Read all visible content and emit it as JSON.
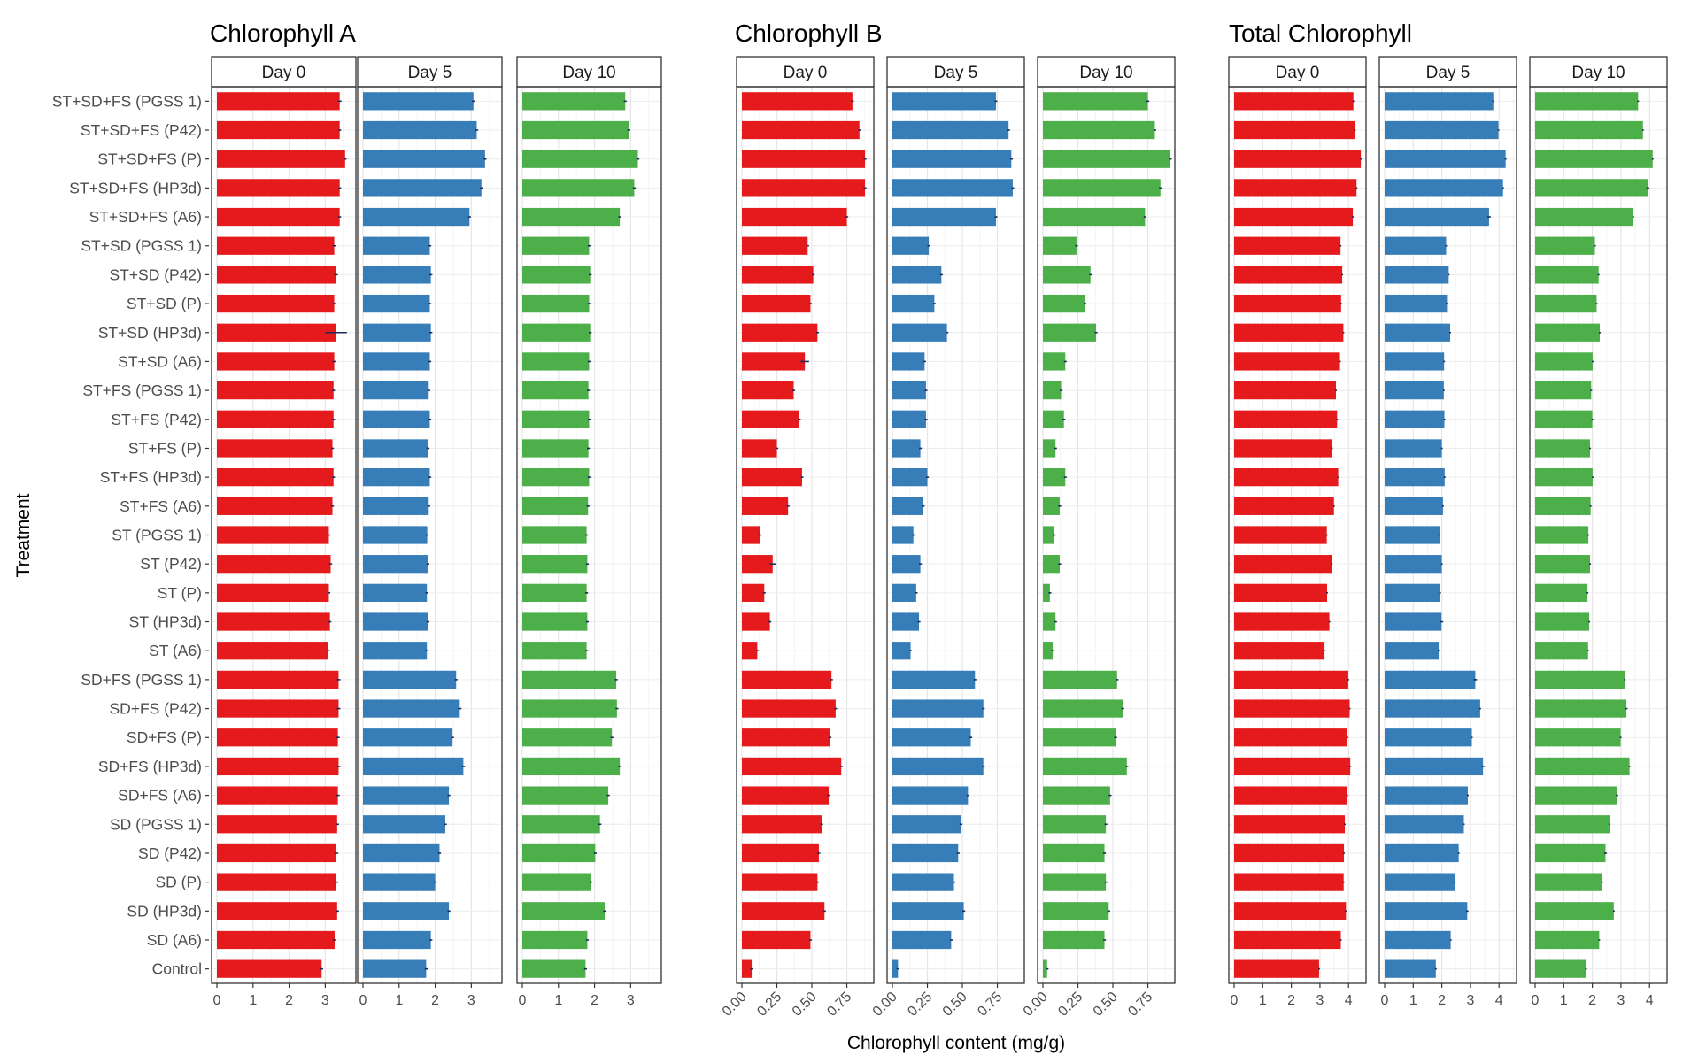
{
  "chart_data": {
    "type": "bar",
    "orientation": "horizontal",
    "xlabel": "Chlorophyll content (mg/g)",
    "ylabel": "Treatment",
    "grid": true,
    "legend": "none",
    "categories": [
      "ST+SD+FS (PGSS 1)",
      "ST+SD+FS (P42)",
      "ST+SD+FS (P)",
      "ST+SD+FS (HP3d)",
      "ST+SD+FS (A6)",
      "ST+SD (PGSS 1)",
      "ST+SD (P42)",
      "ST+SD (P)",
      "ST+SD (HP3d)",
      "ST+SD (A6)",
      "ST+FS (PGSS 1)",
      "ST+FS (P42)",
      "ST+FS (P)",
      "ST+FS (HP3d)",
      "ST+FS (A6)",
      "ST (PGSS 1)",
      "ST (P42)",
      "ST (P)",
      "ST (HP3d)",
      "ST (A6)",
      "SD+FS (PGSS 1)",
      "SD+FS (P42)",
      "SD+FS (P)",
      "SD+FS (HP3d)",
      "SD+FS (A6)",
      "SD (PGSS 1)",
      "SD (P42)",
      "SD (P)",
      "SD (HP3d)",
      "SD (A6)",
      "Control"
    ],
    "panels": [
      {
        "title": "Chlorophyll A",
        "xlim": [
          0,
          3.8
        ],
        "ticks": [
          0,
          1,
          2,
          3
        ],
        "tick_labels": [
          "0",
          "1",
          "2",
          "3"
        ],
        "tick_rotation": 0,
        "facets": [
          {
            "label": "Day 0",
            "color": "#e41a1c",
            "values": [
              3.4,
              3.4,
              3.55,
              3.4,
              3.4,
              3.25,
              3.3,
              3.25,
              3.3,
              3.25,
              3.23,
              3.23,
              3.2,
              3.23,
              3.2,
              3.1,
              3.15,
              3.1,
              3.13,
              3.08,
              3.37,
              3.37,
              3.35,
              3.37,
              3.35,
              3.33,
              3.31,
              3.31,
              3.33,
              3.26,
              2.9
            ],
            "errors": [
              0.05,
              0.04,
              0.04,
              0.04,
              0.04,
              0.05,
              0.05,
              0.05,
              0.3,
              0.05,
              0.04,
              0.04,
              0.04,
              0.04,
              0.04,
              0.04,
              0.04,
              0.04,
              0.04,
              0.04,
              0.05,
              0.05,
              0.05,
              0.05,
              0.05,
              0.05,
              0.05,
              0.05,
              0.05,
              0.05,
              0.04
            ]
          },
          {
            "label": "Day 5",
            "color": "#377eb8",
            "values": [
              3.06,
              3.15,
              3.38,
              3.28,
              2.95,
              1.85,
              1.88,
              1.85,
              1.88,
              1.85,
              1.82,
              1.85,
              1.8,
              1.85,
              1.82,
              1.78,
              1.8,
              1.77,
              1.8,
              1.77,
              2.58,
              2.68,
              2.48,
              2.78,
              2.38,
              2.28,
              2.12,
              2.0,
              2.38,
              1.88,
              1.75
            ],
            "errors": [
              0.04,
              0.04,
              0.04,
              0.04,
              0.04,
              0.04,
              0.04,
              0.04,
              0.04,
              0.04,
              0.04,
              0.04,
              0.04,
              0.04,
              0.04,
              0.04,
              0.04,
              0.04,
              0.04,
              0.04,
              0.04,
              0.05,
              0.04,
              0.05,
              0.04,
              0.04,
              0.04,
              0.04,
              0.04,
              0.04,
              0.04
            ]
          },
          {
            "label": "Day 10",
            "color": "#4daf4a",
            "values": [
              2.85,
              2.95,
              3.2,
              3.1,
              2.7,
              1.85,
              1.88,
              1.85,
              1.88,
              1.85,
              1.83,
              1.85,
              1.83,
              1.85,
              1.82,
              1.78,
              1.8,
              1.78,
              1.8,
              1.78,
              2.6,
              2.62,
              2.48,
              2.7,
              2.38,
              2.15,
              2.02,
              1.9,
              2.28,
              1.8,
              1.75
            ],
            "errors": [
              0.04,
              0.04,
              0.04,
              0.04,
              0.04,
              0.04,
              0.04,
              0.04,
              0.04,
              0.04,
              0.04,
              0.04,
              0.04,
              0.04,
              0.04,
              0.04,
              0.04,
              0.04,
              0.04,
              0.04,
              0.04,
              0.04,
              0.04,
              0.04,
              0.04,
              0.04,
              0.04,
              0.04,
              0.04,
              0.04,
              0.04
            ]
          }
        ]
      },
      {
        "title": "Chlorophyll B",
        "xlim": [
          0,
          0.93
        ],
        "ticks": [
          0,
          0.25,
          0.5,
          0.75
        ],
        "tick_labels": [
          "0.00",
          "0.25",
          "0.50",
          "0.75"
        ],
        "tick_rotation": -45,
        "facets": [
          {
            "label": "Day 0",
            "color": "#e41a1c",
            "values": [
              0.79,
              0.84,
              0.88,
              0.88,
              0.75,
              0.47,
              0.51,
              0.49,
              0.54,
              0.45,
              0.37,
              0.41,
              0.25,
              0.43,
              0.33,
              0.13,
              0.22,
              0.16,
              0.2,
              0.11,
              0.64,
              0.67,
              0.63,
              0.71,
              0.62,
              0.57,
              0.55,
              0.54,
              0.59,
              0.49,
              0.07
            ],
            "errors": [
              0.01,
              0.01,
              0.01,
              0.01,
              0.01,
              0.01,
              0.01,
              0.01,
              0.01,
              0.03,
              0.01,
              0.01,
              0.01,
              0.01,
              0.01,
              0.01,
              0.02,
              0.01,
              0.01,
              0.01,
              0.01,
              0.01,
              0.01,
              0.01,
              0.01,
              0.01,
              0.01,
              0.01,
              0.01,
              0.01,
              0.01
            ]
          },
          {
            "label": "Day 5",
            "color": "#377eb8",
            "values": [
              0.74,
              0.83,
              0.85,
              0.86,
              0.74,
              0.26,
              0.35,
              0.3,
              0.39,
              0.23,
              0.24,
              0.24,
              0.2,
              0.25,
              0.22,
              0.15,
              0.2,
              0.17,
              0.19,
              0.13,
              0.59,
              0.65,
              0.56,
              0.65,
              0.54,
              0.49,
              0.47,
              0.44,
              0.51,
              0.42,
              0.04
            ],
            "errors": [
              0.01,
              0.01,
              0.01,
              0.01,
              0.01,
              0.01,
              0.01,
              0.01,
              0.01,
              0.01,
              0.01,
              0.01,
              0.01,
              0.01,
              0.01,
              0.01,
              0.01,
              0.01,
              0.01,
              0.01,
              0.01,
              0.01,
              0.01,
              0.01,
              0.01,
              0.01,
              0.01,
              0.01,
              0.01,
              0.01,
              0.01
            ]
          },
          {
            "label": "Day 10",
            "color": "#4daf4a",
            "values": [
              0.75,
              0.8,
              0.91,
              0.84,
              0.73,
              0.24,
              0.34,
              0.3,
              0.38,
              0.16,
              0.13,
              0.15,
              0.09,
              0.16,
              0.12,
              0.08,
              0.12,
              0.05,
              0.09,
              0.07,
              0.53,
              0.57,
              0.52,
              0.6,
              0.48,
              0.45,
              0.44,
              0.45,
              0.47,
              0.44,
              0.03
            ],
            "errors": [
              0.01,
              0.01,
              0.01,
              0.01,
              0.01,
              0.01,
              0.01,
              0.01,
              0.01,
              0.01,
              0.01,
              0.01,
              0.01,
              0.01,
              0.01,
              0.01,
              0.01,
              0.01,
              0.01,
              0.01,
              0.01,
              0.01,
              0.01,
              0.01,
              0.01,
              0.01,
              0.01,
              0.01,
              0.01,
              0.01,
              0.01
            ]
          }
        ]
      },
      {
        "title": "Total Chlorophyll",
        "xlim": [
          0,
          4.55
        ],
        "ticks": [
          0,
          1,
          2,
          3,
          4
        ],
        "tick_labels": [
          "0",
          "1",
          "2",
          "3",
          "4"
        ],
        "tick_rotation": 0,
        "facets": [
          {
            "label": "Day 0",
            "color": "#e41a1c",
            "values": [
              4.17,
              4.22,
              4.43,
              4.28,
              4.15,
              3.72,
              3.78,
              3.74,
              3.82,
              3.7,
              3.56,
              3.6,
              3.42,
              3.64,
              3.49,
              3.24,
              3.41,
              3.25,
              3.33,
              3.16,
              3.99,
              4.04,
              3.96,
              4.06,
              3.95,
              3.87,
              3.84,
              3.83,
              3.91,
              3.73,
              2.97
            ],
            "errors": [
              0.03,
              0.03,
              0.03,
              0.03,
              0.03,
              0.03,
              0.03,
              0.03,
              0.03,
              0.03,
              0.03,
              0.03,
              0.03,
              0.03,
              0.03,
              0.03,
              0.03,
              0.03,
              0.03,
              0.03,
              0.03,
              0.03,
              0.03,
              0.03,
              0.03,
              0.03,
              0.03,
              0.03,
              0.03,
              0.03,
              0.03
            ]
          },
          {
            "label": "Day 5",
            "color": "#377eb8",
            "values": [
              3.8,
              3.98,
              4.23,
              4.14,
              3.65,
              2.15,
              2.24,
              2.18,
              2.29,
              2.08,
              2.07,
              2.09,
              2.0,
              2.1,
              2.04,
              1.92,
              2.0,
              1.94,
              1.99,
              1.89,
              3.17,
              3.34,
              3.05,
              3.44,
              2.91,
              2.77,
              2.59,
              2.45,
              2.89,
              2.31,
              1.79
            ],
            "errors": [
              0.03,
              0.03,
              0.03,
              0.03,
              0.06,
              0.03,
              0.03,
              0.05,
              0.03,
              0.03,
              0.03,
              0.03,
              0.03,
              0.03,
              0.03,
              0.03,
              0.03,
              0.03,
              0.06,
              0.03,
              0.06,
              0.03,
              0.03,
              0.05,
              0.03,
              0.03,
              0.03,
              0.03,
              0.04,
              0.03,
              0.03
            ]
          },
          {
            "label": "Day 10",
            "color": "#4daf4a",
            "values": [
              3.6,
              3.77,
              4.11,
              3.94,
              3.43,
              2.09,
              2.22,
              2.15,
              2.26,
              2.01,
              1.96,
              2.0,
              1.92,
              2.01,
              1.94,
              1.86,
              1.92,
              1.83,
              1.89,
              1.85,
              3.13,
              3.19,
              2.99,
              3.3,
              2.86,
              2.6,
              2.46,
              2.35,
              2.75,
              2.24,
              1.78
            ],
            "errors": [
              0.03,
              0.03,
              0.03,
              0.05,
              0.03,
              0.03,
              0.03,
              0.03,
              0.03,
              0.03,
              0.03,
              0.03,
              0.03,
              0.03,
              0.03,
              0.03,
              0.03,
              0.03,
              0.03,
              0.03,
              0.03,
              0.04,
              0.03,
              0.03,
              0.04,
              0.03,
              0.05,
              0.03,
              0.03,
              0.03,
              0.03
            ]
          }
        ]
      }
    ]
  }
}
